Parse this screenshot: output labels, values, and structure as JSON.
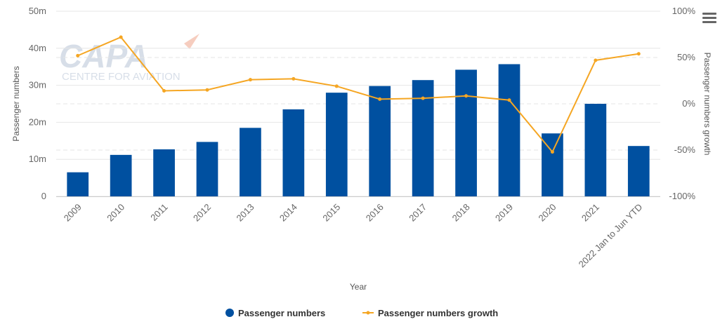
{
  "watermark": {
    "logo_text": "CAPA",
    "tagline": "CENTRE FOR AVIATION"
  },
  "menu": {
    "icon": "hamburger-menu-icon"
  },
  "chart_data": {
    "type": "bar",
    "title": "",
    "xlabel": "Year",
    "ylabel": "Passenger numbers",
    "y2label": "Passenger numbers growth",
    "categories": [
      "2009",
      "2010",
      "2011",
      "2012",
      "2013",
      "2014",
      "2015",
      "2016",
      "2017",
      "2018",
      "2019",
      "2020",
      "2021",
      "2022 Jan to Jun YTD"
    ],
    "ylim": [
      0,
      50000000
    ],
    "y_ticks": [
      0,
      10000000,
      20000000,
      30000000,
      40000000,
      50000000
    ],
    "y_tick_labels": [
      "0",
      "10m",
      "20m",
      "30m",
      "40m",
      "50m"
    ],
    "y2lim": [
      -100,
      100
    ],
    "y2_ticks": [
      -100,
      -50,
      0,
      50,
      100
    ],
    "y2_tick_labels": [
      "-100%",
      "-50%",
      "0%",
      "50%",
      "100%"
    ],
    "legend_position": "bottom-center",
    "grid": true,
    "series": [
      {
        "name": "Passenger numbers",
        "type": "bar",
        "axis": "left",
        "color": "#0050a0",
        "values": [
          6500000,
          11200000,
          12700000,
          14700000,
          18500000,
          23500000,
          28000000,
          29800000,
          31400000,
          34200000,
          35700000,
          17000000,
          25000000,
          13600000
        ]
      },
      {
        "name": "Passenger numbers growth",
        "type": "line",
        "axis": "right",
        "color": "#f5a623",
        "values": [
          52,
          72,
          14,
          15,
          26,
          27,
          19,
          5,
          6,
          8.5,
          4,
          -52,
          47,
          54
        ]
      }
    ]
  }
}
